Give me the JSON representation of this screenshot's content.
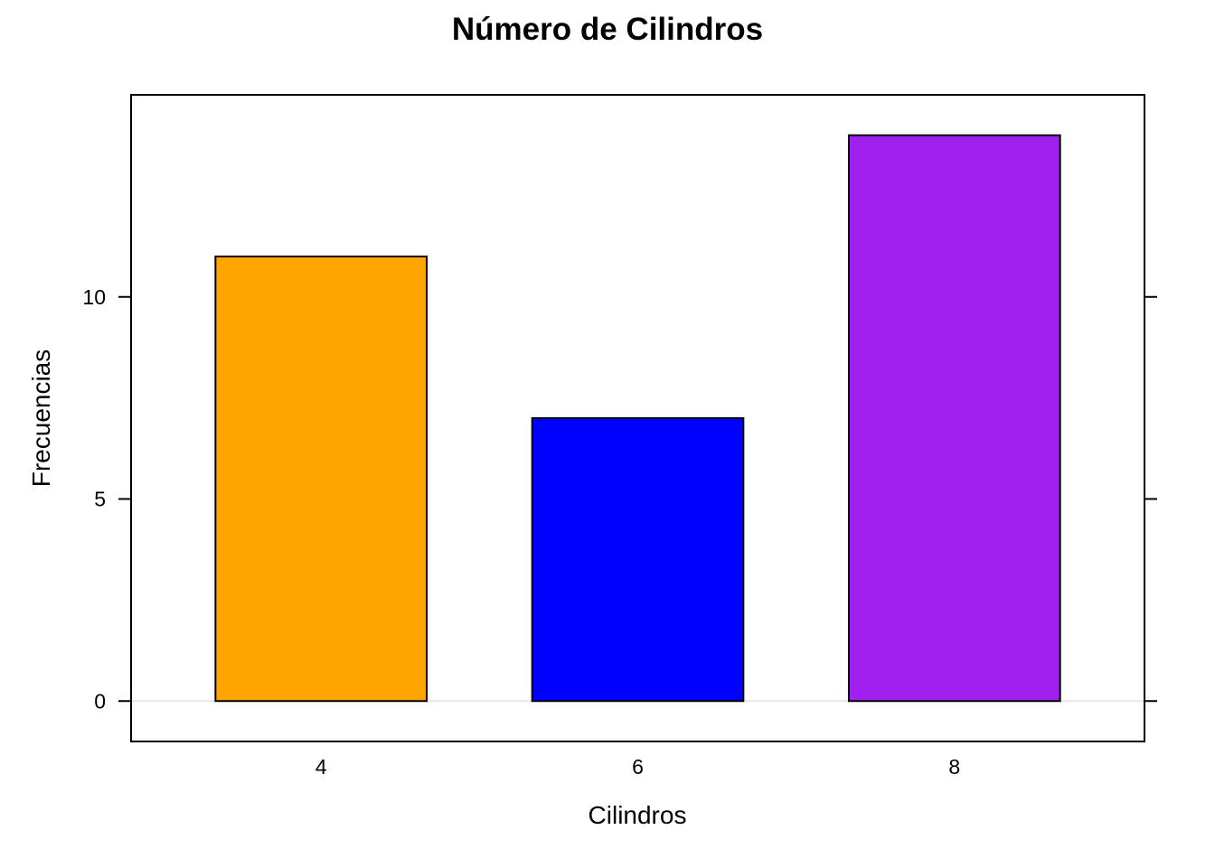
{
  "chart_data": {
    "type": "bar",
    "title": "Número de Cilindros",
    "xlabel": "Cilindros",
    "ylabel": "Frecuencias",
    "categories": [
      "4",
      "6",
      "8"
    ],
    "values": [
      11,
      7,
      14
    ],
    "colors": [
      "#FFA500",
      "#0000FF",
      "#A020F0"
    ],
    "ylim": [
      -1,
      15
    ],
    "yticks": [
      0,
      5,
      10
    ],
    "ytick_labels": [
      "0",
      "5",
      "10"
    ],
    "baseline": 0,
    "baseline_color": "#E6E6E6",
    "grid": false,
    "legend": "none"
  }
}
